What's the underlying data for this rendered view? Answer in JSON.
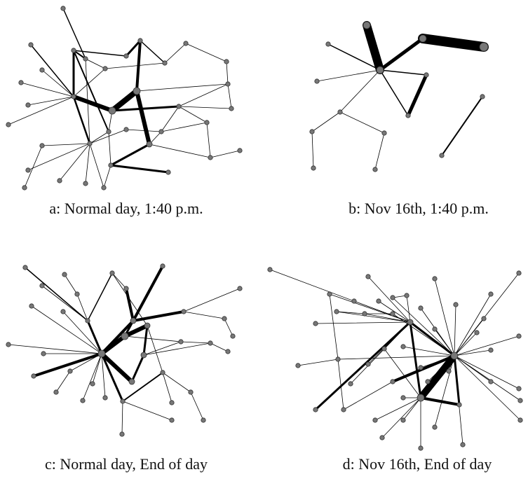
{
  "figure": {
    "panels": [
      {
        "caption": "a: Normal day, 1:40 p.m."
      },
      {
        "caption": "b: Nov 16th, 1:40 p.m."
      },
      {
        "caption": "c: Normal day, End of day"
      },
      {
        "caption": "d: Nov 16th, End of day"
      }
    ]
  }
}
